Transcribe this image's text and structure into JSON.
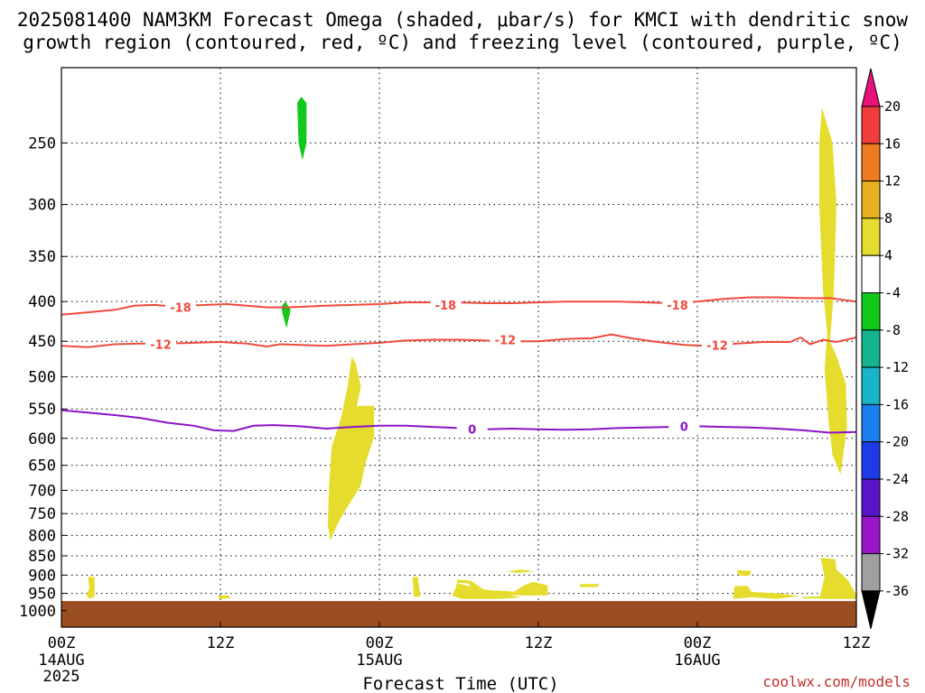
{
  "title": {
    "line1": "2025081400 NAM3KM Forecast Omega (shaded, μbar/s) for KMCI with dendritic snow",
    "line2": "growth region (contoured, red, ºC) and freezing level (contoured, purple, ºC)"
  },
  "credit": "coolwx.com/models",
  "colors": {
    "ground": "#9b4e22",
    "dendritic_contour": "#f04a3c",
    "freezing_contour": "#8c12c8",
    "omega_positive": "#e6dc2e",
    "omega_negative": "#12c81a"
  },
  "chart_data": {
    "type": "heatmap",
    "title": "2025081400 NAM3KM Forecast Omega (shaded, μbar/s) for KMCI with dendritic snow growth region (contoured, red, ºC) and freezing level (contoured, purple, ºC)",
    "xlabel": "Forecast Time (UTC)",
    "ylabel": "",
    "x_unit": "forecast hour from 2025-08-14 00Z",
    "xlim": [
      0,
      60
    ],
    "y_unit": "hPa",
    "ylim": [
      1050,
      200
    ],
    "y_scale": "log-pressure",
    "x_ticks": [
      {
        "x": 0,
        "label": "00Z",
        "sub": [
          "14AUG",
          "2025"
        ]
      },
      {
        "x": 12,
        "label": "12Z",
        "sub": []
      },
      {
        "x": 24,
        "label": "00Z",
        "sub": [
          "15AUG"
        ]
      },
      {
        "x": 36,
        "label": "12Z",
        "sub": []
      },
      {
        "x": 48,
        "label": "00Z",
        "sub": [
          "16AUG"
        ]
      },
      {
        "x": 60,
        "label": "12Z",
        "sub": []
      }
    ],
    "y_ticks": [
      250,
      300,
      350,
      400,
      450,
      500,
      550,
      600,
      650,
      700,
      750,
      800,
      850,
      900,
      950,
      1000
    ],
    "grid": true,
    "colorbar": {
      "labels": [
        "20",
        "16",
        "12",
        "8",
        "4",
        "-4",
        "-8",
        "-12",
        "-16",
        "-20",
        "-24",
        "-28",
        "-32",
        "-36"
      ],
      "colors": [
        "#e8127a",
        "#f03c3c",
        "#f07a20",
        "#e8b020",
        "#e6dc2e",
        "#ffffff",
        "#12c81a",
        "#14b48c",
        "#18b4c8",
        "#1880f0",
        "#1e3ce6",
        "#5a14c8",
        "#9a14c8",
        "#a0a0a0",
        "#000000"
      ]
    },
    "contours": [
      {
        "name": "-18",
        "color": "#f04a3c",
        "labels": [
          {
            "x": 9.0,
            "p": 407
          },
          {
            "x": 29.0,
            "p": 404
          },
          {
            "x": 46.5,
            "p": 404
          }
        ],
        "points": [
          [
            0,
            416
          ],
          [
            2,
            413
          ],
          [
            4,
            410
          ],
          [
            5.5,
            405
          ],
          [
            7,
            404
          ],
          [
            8.5,
            406
          ],
          [
            9.5,
            405
          ],
          [
            11,
            404
          ],
          [
            12.5,
            403
          ],
          [
            14,
            405
          ],
          [
            15.5,
            407
          ],
          [
            17,
            407
          ],
          [
            18.5,
            406
          ],
          [
            20,
            405
          ],
          [
            22,
            404
          ],
          [
            24,
            403
          ],
          [
            26,
            401
          ],
          [
            28,
            401
          ],
          [
            30,
            401
          ],
          [
            32,
            402
          ],
          [
            34,
            402
          ],
          [
            36,
            401
          ],
          [
            38,
            400
          ],
          [
            40,
            400
          ],
          [
            42,
            400
          ],
          [
            44,
            401
          ],
          [
            46,
            402
          ],
          [
            48,
            400
          ],
          [
            50,
            397
          ],
          [
            52,
            395
          ],
          [
            54,
            395
          ],
          [
            56,
            396
          ],
          [
            58,
            396
          ],
          [
            60,
            400
          ]
        ]
      },
      {
        "name": "-12",
        "color": "#f04a3c",
        "labels": [
          {
            "x": 7.5,
            "p": 454
          },
          {
            "x": 33.5,
            "p": 448
          },
          {
            "x": 49.5,
            "p": 455
          }
        ],
        "points": [
          [
            0,
            456
          ],
          [
            2,
            458
          ],
          [
            4,
            454
          ],
          [
            6,
            453
          ],
          [
            8,
            453
          ],
          [
            10,
            452
          ],
          [
            12,
            451
          ],
          [
            14,
            453
          ],
          [
            15.5,
            457
          ],
          [
            16.5,
            454
          ],
          [
            18,
            455
          ],
          [
            20,
            456
          ],
          [
            22,
            454
          ],
          [
            24,
            452
          ],
          [
            26,
            449
          ],
          [
            28,
            448
          ],
          [
            30,
            448
          ],
          [
            32,
            449
          ],
          [
            34,
            450
          ],
          [
            36,
            450
          ],
          [
            38,
            447
          ],
          [
            40,
            446
          ],
          [
            41.5,
            441
          ],
          [
            43,
            446
          ],
          [
            45,
            451
          ],
          [
            47,
            455
          ],
          [
            49,
            456
          ],
          [
            51,
            453
          ],
          [
            53,
            451
          ],
          [
            55,
            451
          ],
          [
            55.8,
            445
          ],
          [
            56.5,
            454
          ],
          [
            57.5,
            448
          ],
          [
            58.5,
            451
          ],
          [
            60,
            445
          ]
        ]
      },
      {
        "name": "0",
        "color": "#8c12c8",
        "labels": [
          {
            "x": 31.0,
            "p": 584
          },
          {
            "x": 47.0,
            "p": 579
          }
        ],
        "points": [
          [
            0,
            552
          ],
          [
            2,
            556
          ],
          [
            4,
            560
          ],
          [
            6,
            565
          ],
          [
            8,
            573
          ],
          [
            10,
            578
          ],
          [
            11.5,
            586
          ],
          [
            13,
            587
          ],
          [
            14.5,
            578
          ],
          [
            16,
            577
          ],
          [
            18,
            579
          ],
          [
            20,
            583
          ],
          [
            22,
            580
          ],
          [
            24,
            578
          ],
          [
            26,
            578
          ],
          [
            28,
            580
          ],
          [
            30,
            582
          ],
          [
            32,
            584
          ],
          [
            34,
            583
          ],
          [
            36,
            584
          ],
          [
            38,
            585
          ],
          [
            40,
            584
          ],
          [
            42,
            582
          ],
          [
            44,
            581
          ],
          [
            46,
            580
          ],
          [
            48,
            579
          ],
          [
            50,
            580
          ],
          [
            52,
            581
          ],
          [
            54,
            583
          ],
          [
            56,
            586
          ],
          [
            58,
            590
          ],
          [
            60,
            589
          ]
        ]
      }
    ],
    "shaded_regions": [
      {
        "value": -8,
        "color": "#12c81a",
        "points": [
          [
            18.1,
            218
          ],
          [
            18.5,
            222
          ],
          [
            18.5,
            250
          ],
          [
            18.2,
            263
          ],
          [
            17.9,
            250
          ],
          [
            17.8,
            222
          ]
        ]
      },
      {
        "value": -8,
        "color": "#12c81a",
        "points": [
          [
            16.9,
            400
          ],
          [
            17.3,
            410
          ],
          [
            17.0,
            433
          ],
          [
            16.7,
            415
          ],
          [
            16.6,
            406
          ]
        ]
      },
      {
        "value": 4,
        "color": "#e6dc2e",
        "points": [
          [
            21.9,
            471
          ],
          [
            22.2,
            480
          ],
          [
            22.6,
            515
          ],
          [
            22.3,
            545
          ],
          [
            23.6,
            545
          ],
          [
            23.6,
            597
          ],
          [
            22.9,
            650
          ],
          [
            22.6,
            690
          ],
          [
            21.4,
            744
          ],
          [
            20.9,
            770
          ],
          [
            20.3,
            812
          ],
          [
            20.1,
            775
          ],
          [
            20.2,
            690
          ],
          [
            20.4,
            615
          ],
          [
            21.1,
            565
          ],
          [
            21.6,
            515
          ]
        ]
      },
      {
        "value": 4,
        "color": "#e6dc2e",
        "points": [
          [
            57.4,
            225
          ],
          [
            58.2,
            250
          ],
          [
            58.5,
            300
          ],
          [
            58.3,
            390
          ],
          [
            58.0,
            450
          ],
          [
            58.5,
            470
          ],
          [
            59.2,
            510
          ],
          [
            59.3,
            580
          ],
          [
            59.1,
            615
          ],
          [
            58.8,
            668
          ],
          [
            58.2,
            630
          ],
          [
            57.9,
            570
          ],
          [
            57.6,
            490
          ],
          [
            57.8,
            440
          ],
          [
            57.5,
            390
          ],
          [
            57.2,
            300
          ],
          [
            57.2,
            250
          ]
        ]
      },
      {
        "value": 4,
        "color": "#e6dc2e",
        "points": [
          [
            2.0,
            905
          ],
          [
            2.5,
            905
          ],
          [
            2.5,
            960
          ],
          [
            2.1,
            965
          ],
          [
            1.9,
            955
          ],
          [
            2.1,
            935
          ]
        ]
      },
      {
        "value": 4,
        "color": "#e6dc2e",
        "points": [
          [
            11.8,
            956
          ],
          [
            12.6,
            956
          ],
          [
            12.8,
            964
          ],
          [
            11.9,
            966
          ]
        ]
      },
      {
        "value": 4,
        "color": "#e6dc2e",
        "points": [
          [
            26.5,
            905
          ],
          [
            26.9,
            905
          ],
          [
            27.1,
            960
          ],
          [
            26.6,
            960
          ]
        ]
      },
      {
        "value": 4,
        "color": "#e6dc2e",
        "points": [
          [
            29.6,
            920
          ],
          [
            30.7,
            922
          ],
          [
            31.0,
            935
          ],
          [
            32.0,
            950
          ],
          [
            34.5,
            956
          ],
          [
            36.7,
            956
          ],
          [
            36.7,
            928
          ],
          [
            35.6,
            918
          ],
          [
            34.9,
            928
          ],
          [
            34.2,
            945
          ],
          [
            31.9,
            940
          ],
          [
            30.9,
            915
          ],
          [
            29.9,
            912
          ],
          [
            29.8,
            930
          ],
          [
            29.5,
            956
          ],
          [
            30.2,
            966
          ],
          [
            33.0,
            966
          ],
          [
            34.7,
            962
          ]
        ]
      },
      {
        "value": 4,
        "color": "#e6dc2e",
        "points": [
          [
            33.6,
            890
          ],
          [
            34.7,
            885
          ],
          [
            35.7,
            890
          ],
          [
            34.5,
            894
          ]
        ]
      },
      {
        "value": 4,
        "color": "#e6dc2e",
        "points": [
          [
            39.1,
            924
          ],
          [
            40.6,
            924
          ],
          [
            40.5,
            932
          ],
          [
            39.2,
            933
          ]
        ]
      },
      {
        "value": 4,
        "color": "#e6dc2e",
        "points": [
          [
            51.0,
            887
          ],
          [
            52.1,
            889
          ],
          [
            51.9,
            902
          ],
          [
            51.1,
            901
          ]
        ]
      },
      {
        "value": 4,
        "color": "#e6dc2e",
        "points": [
          [
            50.8,
            930
          ],
          [
            51.8,
            929
          ],
          [
            52.1,
            946
          ],
          [
            54.2,
            950
          ],
          [
            55.7,
            958
          ],
          [
            54.0,
            966
          ],
          [
            52.0,
            961
          ],
          [
            50.7,
            966
          ]
        ]
      },
      {
        "value": 4,
        "color": "#e6dc2e",
        "points": [
          [
            55.9,
            960
          ],
          [
            57.5,
            958
          ],
          [
            57.5,
            964
          ],
          [
            56.0,
            965
          ]
        ]
      },
      {
        "value": 4,
        "color": "#e6dc2e",
        "points": [
          [
            57.3,
            855
          ],
          [
            58.4,
            858
          ],
          [
            58.5,
            885
          ],
          [
            59.4,
            915
          ],
          [
            60,
            955
          ],
          [
            60,
            966
          ],
          [
            57.2,
            966
          ],
          [
            57.6,
            905
          ]
        ]
      }
    ]
  }
}
